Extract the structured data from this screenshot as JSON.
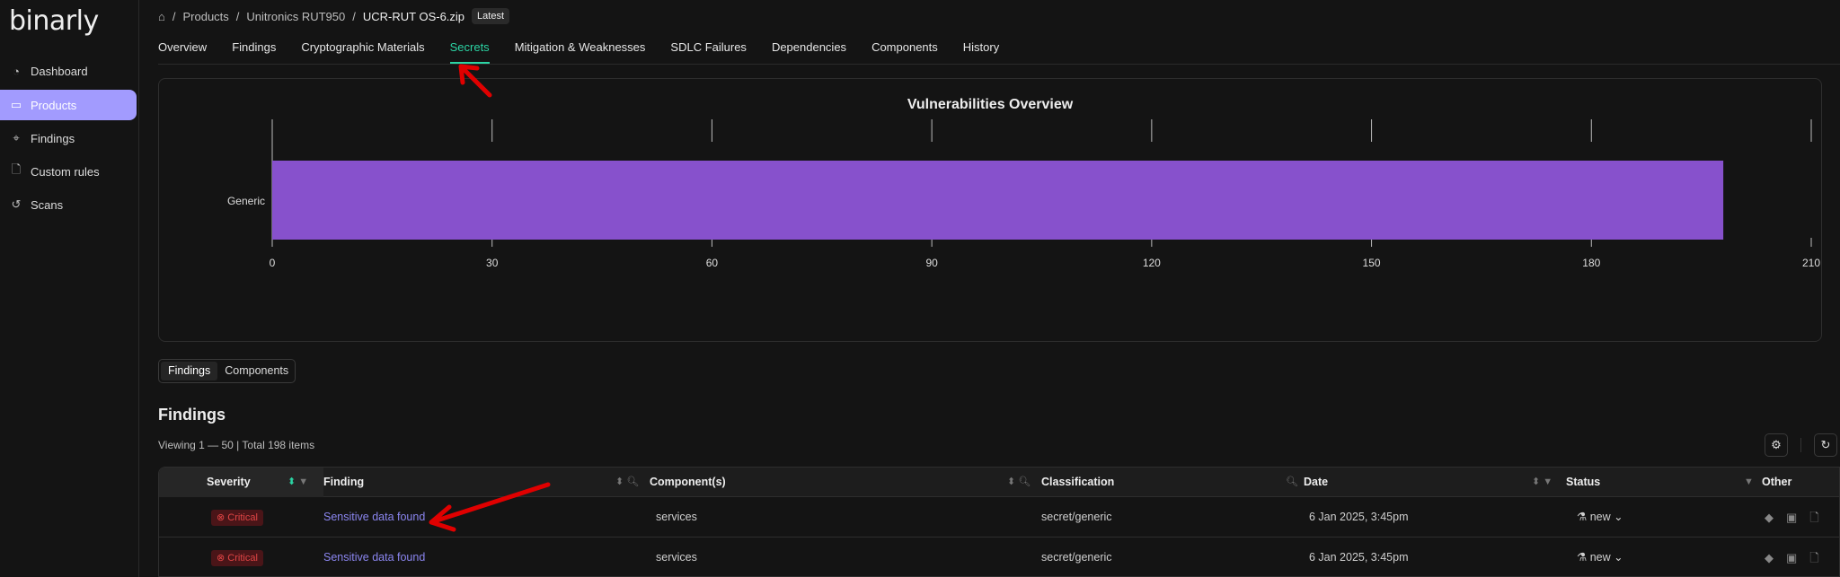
{
  "sidebar": {
    "logo": "binarly",
    "items": [
      {
        "label": "Dashboard",
        "icon": "pie-chart-icon"
      },
      {
        "label": "Products",
        "icon": "folder-icon",
        "active": true
      },
      {
        "label": "Findings",
        "icon": "telescope-icon"
      },
      {
        "label": "Custom rules",
        "icon": "file-gear-icon"
      },
      {
        "label": "Scans",
        "icon": "history-icon"
      }
    ]
  },
  "breadcrumb": {
    "items": [
      "Products",
      "Unitronics RUT950",
      "UCR-RUT OS-6.zip"
    ],
    "badge": "Latest"
  },
  "tabs": [
    "Overview",
    "Findings",
    "Cryptographic Materials",
    "Secrets",
    "Mitigation & Weaknesses",
    "SDLC Failures",
    "Dependencies",
    "Components",
    "History"
  ],
  "active_tab": "Secrets",
  "chart_data": {
    "type": "bar",
    "orientation": "horizontal",
    "title": "Vulnerabilities Overview",
    "categories": [
      "Generic"
    ],
    "values": [
      198
    ],
    "xlim": [
      0,
      210
    ],
    "xticks": [
      "0",
      "30",
      "60",
      "90",
      "120",
      "150",
      "180",
      "210"
    ],
    "color": "#8751cc"
  },
  "view_toggle": {
    "options": [
      "Findings",
      "Components"
    ],
    "selected": "Findings"
  },
  "findings": {
    "title": "Findings",
    "viewing": "Viewing 1 — 50 | Total 198 items",
    "columns": [
      "Severity",
      "Finding",
      "Component(s)",
      "Classification",
      "Date",
      "Status",
      "Other"
    ],
    "rows": [
      {
        "severity": "Critical",
        "finding": "Sensitive data found",
        "component": "services",
        "classification": "secret/generic",
        "date": "6 Jan 2025, 3:45pm",
        "status": "new"
      },
      {
        "severity": "Critical",
        "finding": "Sensitive data found",
        "component": "services",
        "classification": "secret/generic",
        "date": "6 Jan 2025, 3:45pm",
        "status": "new"
      }
    ]
  },
  "colors": {
    "accent": "#2bd4a4",
    "sidebar_active": "#a29bfe",
    "critical": "#e04545",
    "link": "#8b86f0",
    "annotation_arrow": "#e00000"
  }
}
